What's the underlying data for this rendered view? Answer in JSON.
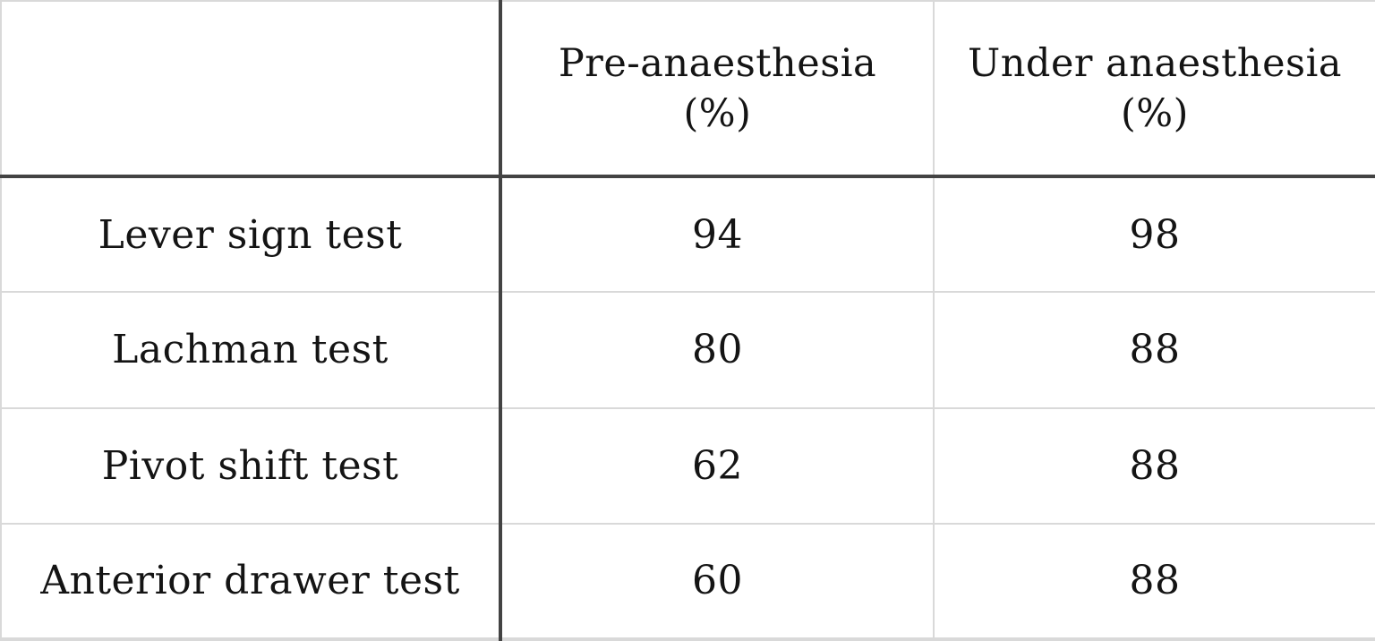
{
  "table": {
    "header": {
      "test_name": "",
      "pre_line1": "Pre-anaesthesia",
      "pre_line2": "(%)",
      "under_line1": "Under anaesthesia",
      "under_line2": "(%)"
    },
    "rows": [
      {
        "label": "Lever sign test",
        "pre": "94",
        "under": "98"
      },
      {
        "label": "Lachman test",
        "pre": "80",
        "under": "88"
      },
      {
        "label": "Pivot shift test",
        "pre": "62",
        "under": "88"
      },
      {
        "label": "Anterior drawer test",
        "pre": "60",
        "under": "88"
      }
    ]
  },
  "chart_data": {
    "type": "table",
    "title": "",
    "columns": [
      "",
      "Pre-anaesthesia (%)",
      "Under anaesthesia (%)"
    ],
    "rows": [
      {
        "label": "Lever sign test",
        "values": [
          94,
          98
        ]
      },
      {
        "label": "Lachman test",
        "values": [
          80,
          88
        ]
      },
      {
        "label": "Pivot shift test",
        "values": [
          62,
          88
        ]
      },
      {
        "label": "Anterior drawer test",
        "values": [
          60,
          88
        ]
      }
    ],
    "colors": {
      "dark_rule": "#434343",
      "light_rule": "#d9d9d9",
      "text": "#141414",
      "background": "#ffffff"
    }
  }
}
